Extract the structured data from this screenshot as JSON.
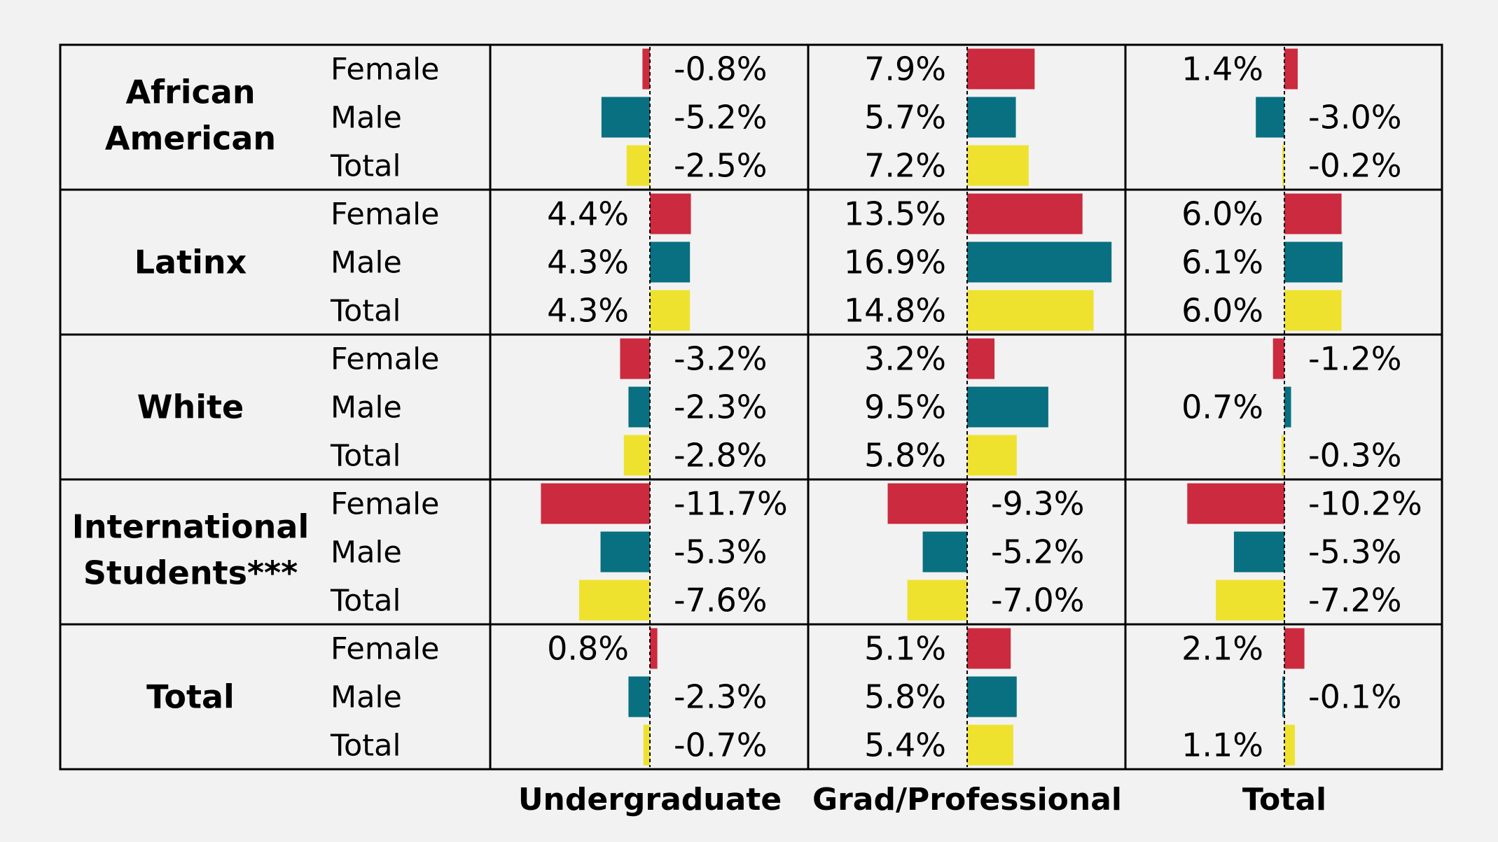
{
  "colors": {
    "Female": "#cc2a3f",
    "Male": "#087080",
    "Total": "#eee22f",
    "background": "#f2f2f2"
  },
  "chart_data": {
    "type": "bar",
    "orientation": "horizontal",
    "panels": [
      "Undergraduate",
      "Grad/Professional",
      "Total"
    ],
    "groups": [
      {
        "label": "African American",
        "rows": [
          {
            "sub": "Female",
            "values": [
              -0.8,
              7.9,
              1.4
            ],
            "labels": [
              "-0.8%",
              "7.9%",
              "1.4%"
            ]
          },
          {
            "sub": "Male",
            "values": [
              -5.2,
              5.7,
              -3.0
            ],
            "labels": [
              "-5.2%",
              "5.7%",
              "-3.0%"
            ]
          },
          {
            "sub": "Total",
            "values": [
              -2.5,
              7.2,
              -0.2
            ],
            "labels": [
              "-2.5%",
              "7.2%",
              "-0.2%"
            ]
          }
        ]
      },
      {
        "label": "Latinx",
        "rows": [
          {
            "sub": "Female",
            "values": [
              4.4,
              13.5,
              6.0
            ],
            "labels": [
              "4.4%",
              "13.5%",
              "6.0%"
            ]
          },
          {
            "sub": "Male",
            "values": [
              4.3,
              16.9,
              6.1
            ],
            "labels": [
              "4.3%",
              "16.9%",
              "6.1%"
            ]
          },
          {
            "sub": "Total",
            "values": [
              4.3,
              14.8,
              6.0
            ],
            "labels": [
              "4.3%",
              "14.8%",
              "6.0%"
            ]
          }
        ]
      },
      {
        "label": "White",
        "rows": [
          {
            "sub": "Female",
            "values": [
              -3.2,
              3.2,
              -1.2
            ],
            "labels": [
              "-3.2%",
              "3.2%",
              "-1.2%"
            ]
          },
          {
            "sub": "Male",
            "values": [
              -2.3,
              9.5,
              0.7
            ],
            "labels": [
              "-2.3%",
              "9.5%",
              "0.7%"
            ]
          },
          {
            "sub": "Total",
            "values": [
              -2.8,
              5.8,
              -0.3
            ],
            "labels": [
              "-2.8%",
              "5.8%",
              "-0.3%"
            ]
          }
        ]
      },
      {
        "label": "International Students***",
        "rows": [
          {
            "sub": "Female",
            "values": [
              -11.7,
              -9.3,
              -10.2
            ],
            "labels": [
              "-11.7%",
              "-9.3%",
              "-10.2%"
            ]
          },
          {
            "sub": "Male",
            "values": [
              -5.3,
              -5.2,
              -5.3
            ],
            "labels": [
              "-5.3%",
              "-5.2%",
              "-5.3%"
            ]
          },
          {
            "sub": "Total",
            "values": [
              -7.6,
              -7.0,
              -7.2
            ],
            "labels": [
              "-7.6%",
              "-7.0%",
              "-7.2%"
            ]
          }
        ]
      },
      {
        "label": "Total",
        "rows": [
          {
            "sub": "Female",
            "values": [
              0.8,
              5.1,
              2.1
            ],
            "labels": [
              "0.8%",
              "5.1%",
              "2.1%"
            ]
          },
          {
            "sub": "Male",
            "values": [
              -2.3,
              5.8,
              -0.1
            ],
            "labels": [
              "-2.3%",
              "5.8%",
              "-0.1%"
            ]
          },
          {
            "sub": "Total",
            "values": [
              -0.7,
              5.4,
              1.1
            ],
            "labels": [
              "-0.7%",
              "5.4%",
              "1.1%"
            ]
          }
        ]
      }
    ],
    "grid": false,
    "zero_line": "dashed"
  }
}
